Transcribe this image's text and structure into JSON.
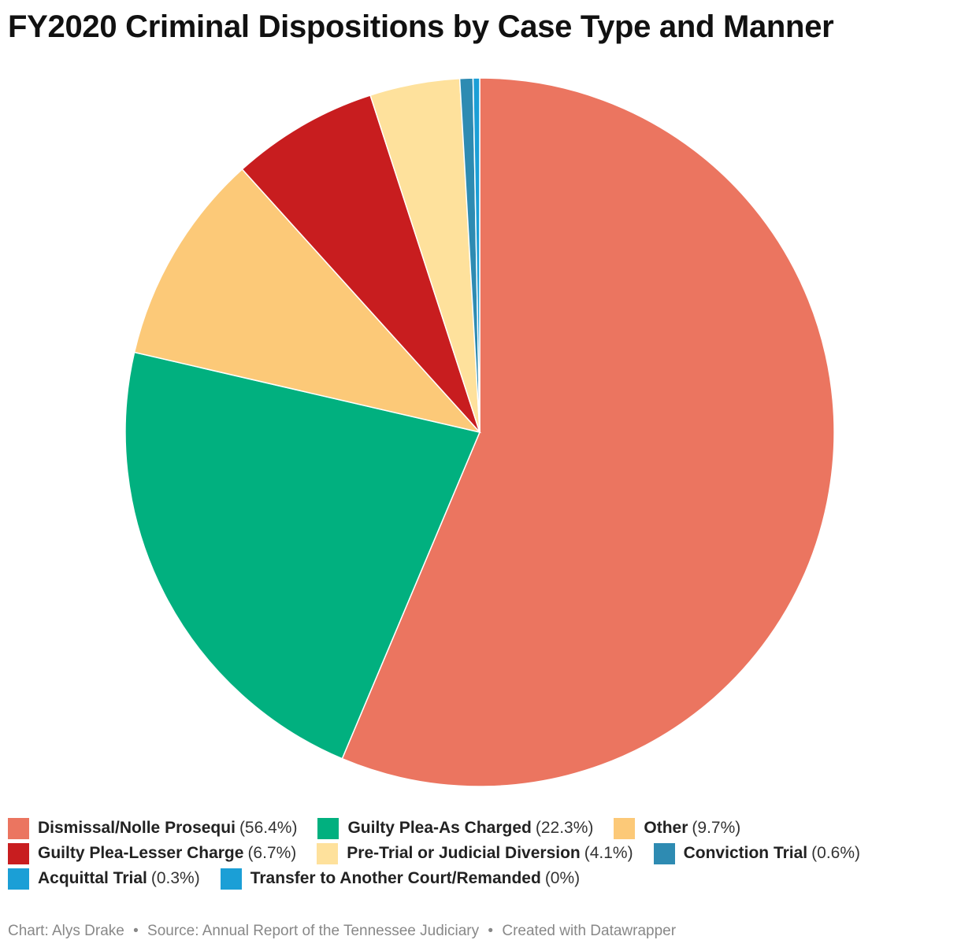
{
  "title": "FY2020 Criminal Dispositions by Case Type and Manner",
  "chart_data": {
    "type": "pie",
    "title": "FY2020 Criminal Dispositions by Case Type and Manner",
    "start_angle_deg": 0,
    "direction": "clockwise",
    "slices": [
      {
        "label": "Dismissal/Nolle Prosequi",
        "value": 56.4,
        "display": "(56.4%)",
        "color": "#eb7560"
      },
      {
        "label": "Guilty Plea-As Charged",
        "value": 22.3,
        "display": "(22.3%)",
        "color": "#01b07f"
      },
      {
        "label": "Other",
        "value": 9.7,
        "display": "(9.7%)",
        "color": "#fcc978"
      },
      {
        "label": "Guilty Plea-Lesser Charge",
        "value": 6.7,
        "display": "(6.7%)",
        "color": "#c81d1f"
      },
      {
        "label": "Pre-Trial or Judicial Diversion",
        "value": 4.1,
        "display": "(4.1%)",
        "color": "#fee19c"
      },
      {
        "label": "Conviction Trial",
        "value": 0.6,
        "display": "(0.6%)",
        "color": "#2e8bb2"
      },
      {
        "label": "Acquittal Trial",
        "value": 0.3,
        "display": "(0.3%)",
        "color": "#1b9fd6"
      },
      {
        "label": "Transfer to Another Court/Remanded",
        "value": 0,
        "display": "(0%)",
        "color": "#1b9fd6"
      }
    ],
    "legend_position": "bottom"
  },
  "footer": {
    "chart": "Chart: Alys Drake",
    "source": "Source: Annual Report of the Tennessee Judiciary",
    "credit": "Created with Datawrapper",
    "separator": "•"
  }
}
